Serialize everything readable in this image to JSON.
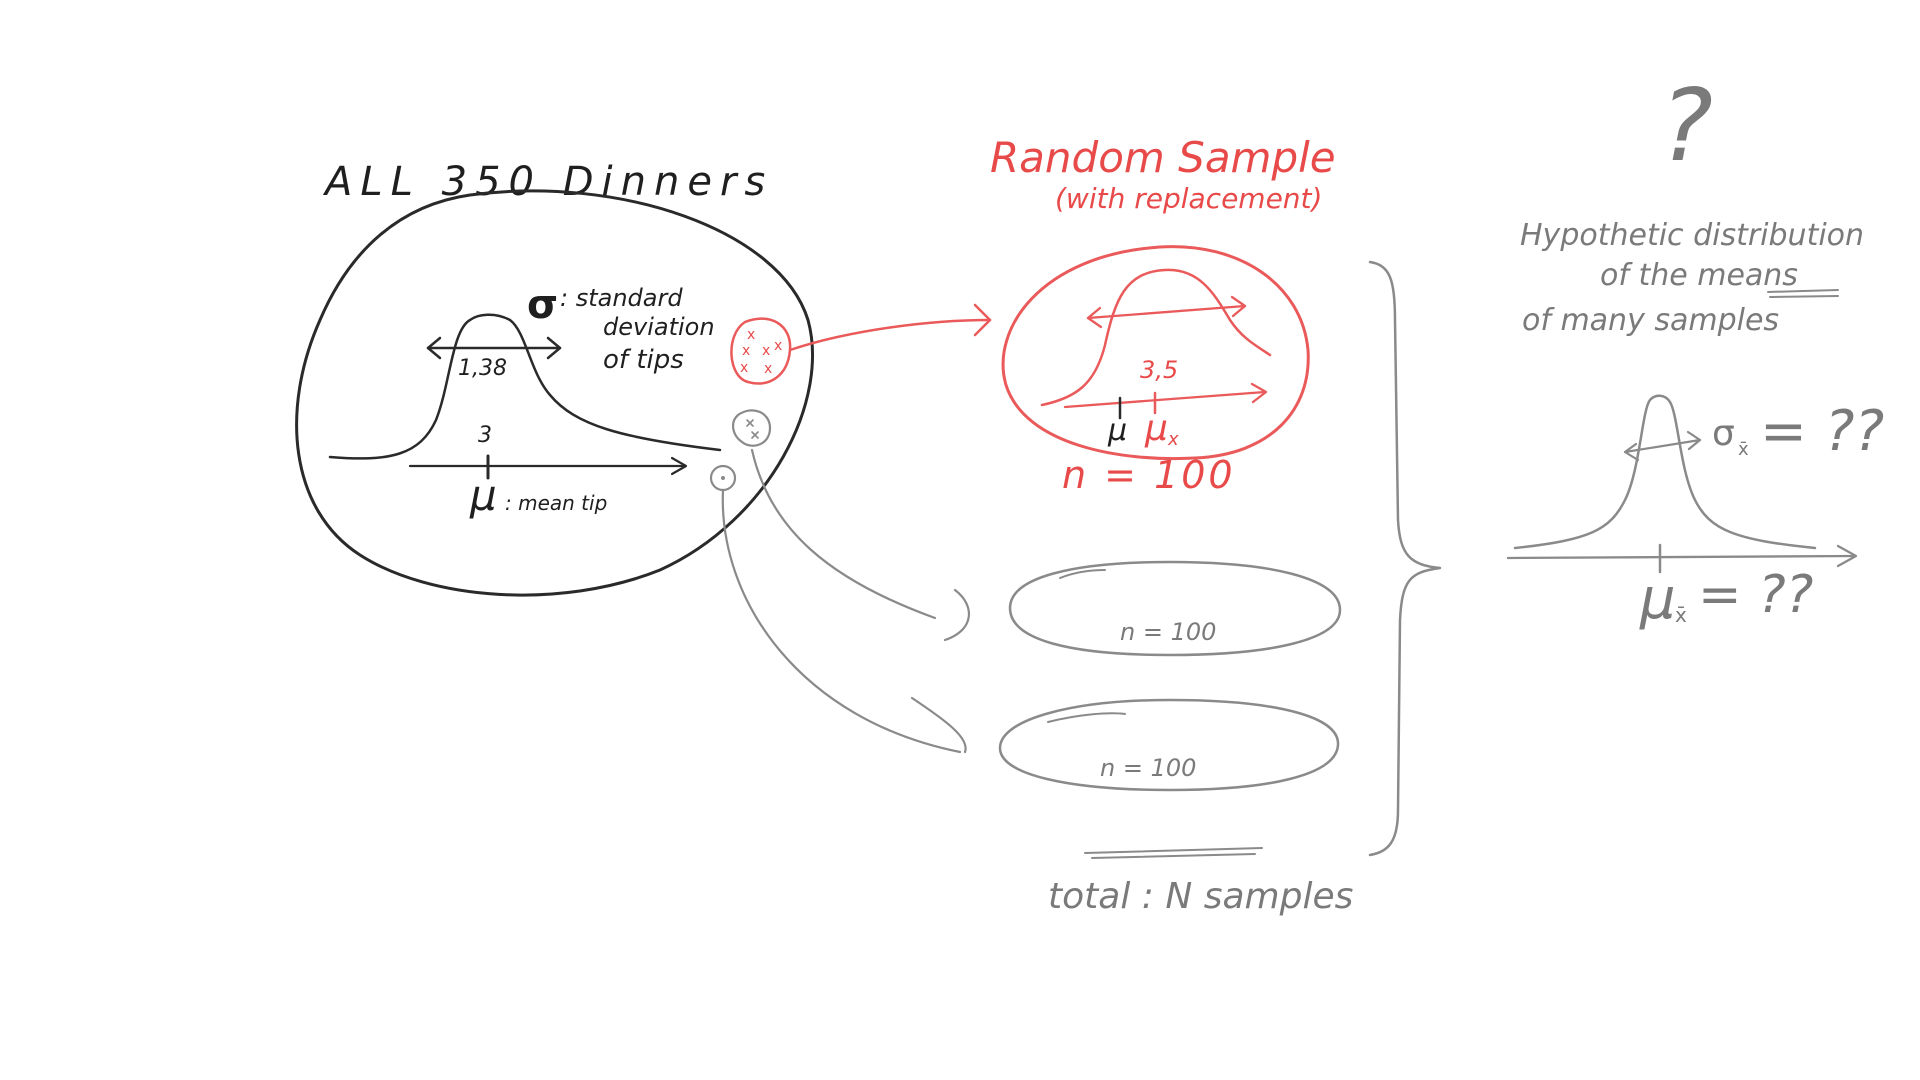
{
  "population": {
    "title": "ALL 350 Dinners",
    "sigma_symbol": "σ",
    "sigma_desc_line1": ": standard",
    "sigma_desc_line2": "deviation",
    "sigma_desc_line3": "of tips",
    "std_value": "1,38",
    "mean_value": "3",
    "mu_symbol": "μ",
    "mu_desc": ": mean tip",
    "sample_marks": [
      "x",
      "x",
      "x",
      "x",
      "x",
      "x"
    ]
  },
  "sample": {
    "title": "Random Sample",
    "subtitle": "(with replacement)",
    "mean_value": "3,5",
    "mu_label": "μ",
    "mu_x_label": "μ",
    "mu_x_sub": "x",
    "n_label": "n = 100"
  },
  "other_samples": [
    {
      "n_label": "n = 100"
    },
    {
      "n_label": "n = 100"
    }
  ],
  "total_label": "total : N samples",
  "hypothetical": {
    "question_mark": "?",
    "line1": "Hypothetic distribution",
    "line2": "of the means",
    "line3": "of many samples",
    "sigma_xbar_label": "σ",
    "sigma_xbar_sub": "x̄",
    "sigma_xbar_value": "= ??",
    "mu_xbar_label": "μ",
    "mu_xbar_sub": "x̄",
    "mu_xbar_value": "= ??"
  },
  "colors": {
    "black": "#2a2a2a",
    "red": "#ea5a5a",
    "gray": "#8a8a8a"
  }
}
